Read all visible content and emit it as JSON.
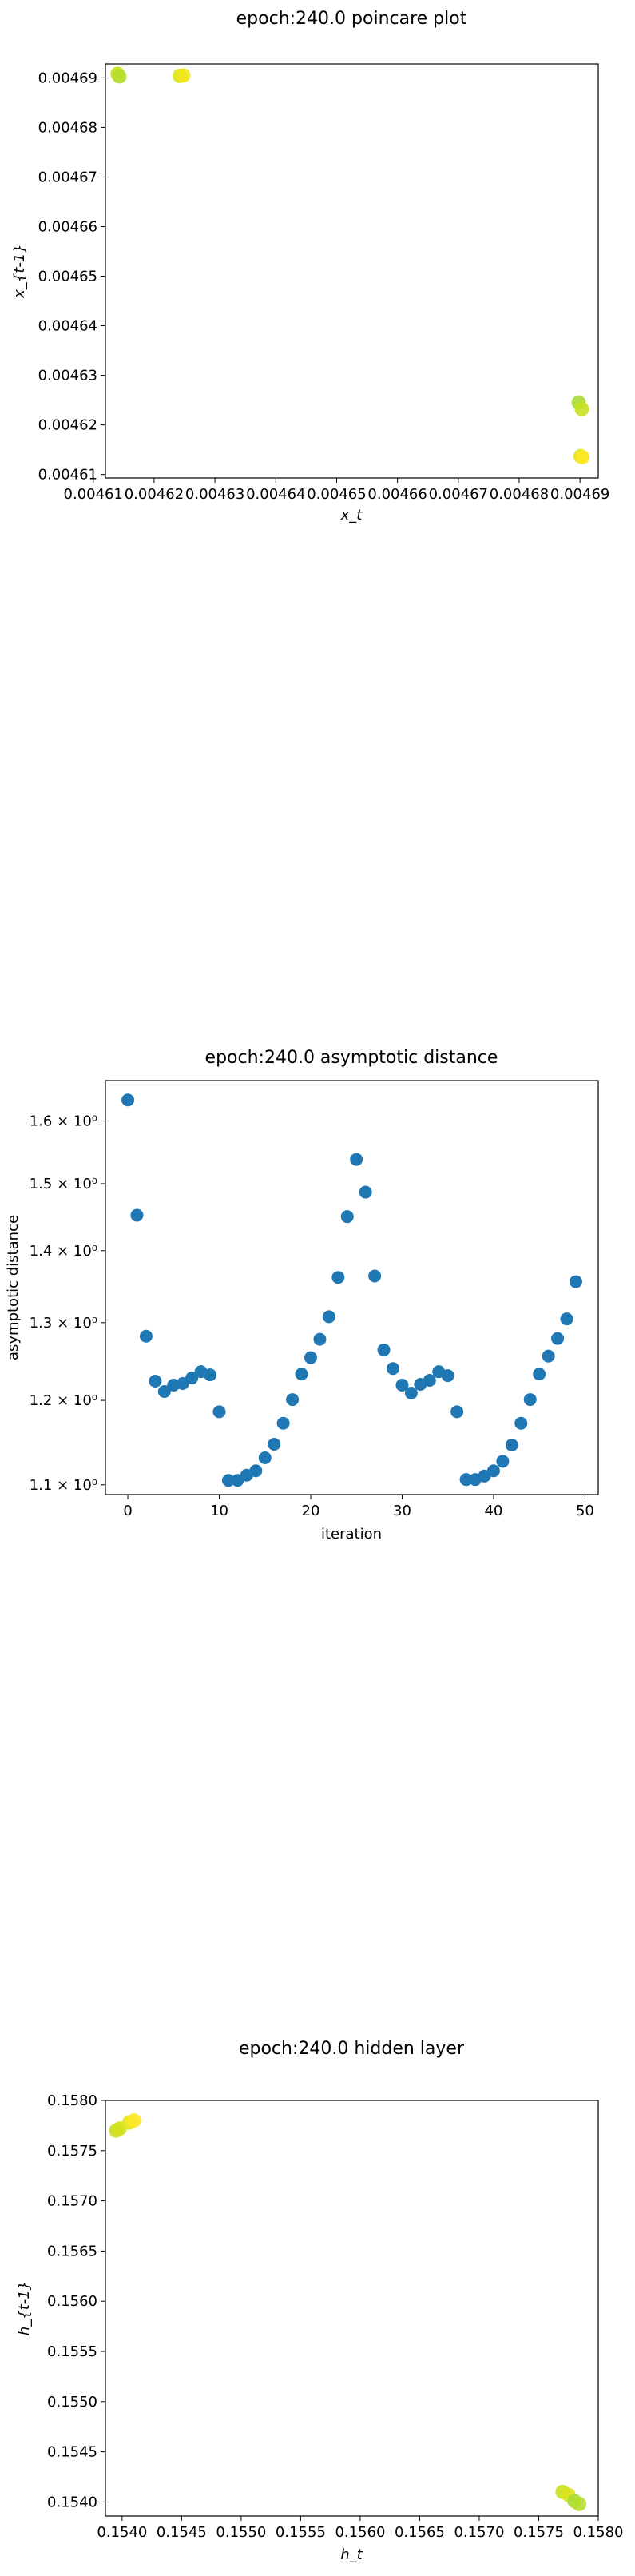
{
  "chart_data": [
    {
      "type": "scatter",
      "title": "epoch:240.0 poincare plot",
      "xlabel": "x_t",
      "ylabel": "x_{t-1}",
      "xlim": [
        0.004612,
        0.004693
      ],
      "ylim": [
        0.0046093,
        0.0046928
      ],
      "xticks": [
        0.00461,
        0.00462,
        0.00463,
        0.00464,
        0.00465,
        0.00466,
        0.00467,
        0.00468,
        0.00469
      ],
      "xtick_labels": [
        "0.00461",
        "0.00462",
        "0.00463",
        "0.00464",
        "0.00465",
        "0.00466",
        "0.00467",
        "0.00468",
        "0.00469"
      ],
      "yticks": [
        0.00461,
        0.00462,
        0.00463,
        0.00464,
        0.00465,
        0.00466,
        0.00467,
        0.00468,
        0.00469
      ],
      "ytick_labels": [
        "0.00461",
        "0.00462",
        "0.00463",
        "0.00464",
        "0.00465",
        "0.00466",
        "0.00467",
        "0.00468",
        "0.00469"
      ],
      "points": [
        {
          "x": 0.004614,
          "y": 0.0046908,
          "color": "#c5df20"
        },
        {
          "x": 0.0046143,
          "y": 0.0046903,
          "color": "#b5de2b"
        },
        {
          "x": 0.0046242,
          "y": 0.0046904,
          "color": "#d9e51a"
        },
        {
          "x": 0.0046248,
          "y": 0.0046905,
          "color": "#f0e71d"
        },
        {
          "x": 0.0046898,
          "y": 0.0046245,
          "color": "#a8db34"
        },
        {
          "x": 0.0046903,
          "y": 0.0046232,
          "color": "#c8e020"
        },
        {
          "x": 0.0046901,
          "y": 0.0046137,
          "color": "#dde318"
        },
        {
          "x": 0.0046904,
          "y": 0.0046135,
          "color": "#fde725"
        }
      ]
    },
    {
      "type": "scatter",
      "title": "epoch:240.0 asymptotic distance",
      "xlabel": "iteration",
      "ylabel": "asymptotic distance",
      "yscale": "log",
      "xlim": [
        -2.45,
        51.45
      ],
      "ylim": [
        1.089,
        1.668
      ],
      "xticks": [
        0,
        10,
        20,
        30,
        40,
        50
      ],
      "xtick_labels": [
        "0",
        "10",
        "20",
        "30",
        "40",
        "50"
      ],
      "yticks": [
        1.1,
        1.2,
        1.3,
        1.4,
        1.5,
        1.6
      ],
      "ytick_labels": [
        "1.1 × 10⁰",
        "1.2 × 10⁰",
        "1.3 × 10⁰",
        "1.4 × 10⁰",
        "1.5 × 10⁰",
        "1.6 × 10⁰"
      ],
      "color": "#1f77b4",
      "x": [
        0,
        1,
        2,
        3,
        4,
        5,
        6,
        7,
        8,
        9,
        10,
        11,
        12,
        13,
        14,
        15,
        16,
        17,
        18,
        19,
        20,
        21,
        22,
        23,
        24,
        25,
        26,
        27,
        28,
        29,
        30,
        31,
        32,
        33,
        34,
        35,
        36,
        37,
        38,
        39,
        40,
        41,
        42,
        43,
        44,
        45,
        46,
        47,
        48,
        49
      ],
      "y": [
        1.635,
        1.452,
        1.282,
        1.224,
        1.211,
        1.219,
        1.221,
        1.228,
        1.236,
        1.232,
        1.186,
        1.105,
        1.105,
        1.111,
        1.116,
        1.131,
        1.147,
        1.172,
        1.201,
        1.233,
        1.254,
        1.278,
        1.308,
        1.362,
        1.45,
        1.538,
        1.487,
        1.364,
        1.264,
        1.24,
        1.219,
        1.209,
        1.22,
        1.225,
        1.236,
        1.231,
        1.186,
        1.106,
        1.106,
        1.11,
        1.116,
        1.127,
        1.146,
        1.172,
        1.201,
        1.233,
        1.256,
        1.279,
        1.305,
        1.356
      ]
    },
    {
      "type": "scatter",
      "title": "epoch:240.0 hidden layer",
      "xlabel": "h_t",
      "ylabel": "h_{t-1}",
      "xlim": [
        0.15386,
        0.158
      ],
      "ylim": [
        0.15386,
        0.158
      ],
      "xticks": [
        0.154,
        0.1545,
        0.155,
        0.1555,
        0.156,
        0.1565,
        0.157,
        0.1575,
        0.158
      ],
      "xtick_labels": [
        "0.1540",
        "0.1545",
        "0.1550",
        "0.1555",
        "0.1560",
        "0.1565",
        "0.1570",
        "0.1575",
        "0.1580"
      ],
      "yticks": [
        0.154,
        0.1545,
        0.155,
        0.1555,
        0.156,
        0.1565,
        0.157,
        0.1575,
        0.158
      ],
      "ytick_labels": [
        "0.1540",
        "0.1545",
        "0.1550",
        "0.1555",
        "0.1560",
        "0.1565",
        "0.1570",
        "0.1575",
        "0.1580"
      ],
      "points": [
        {
          "x": 0.15395,
          "y": 0.1577,
          "color": "#c5df20"
        },
        {
          "x": 0.15398,
          "y": 0.15772,
          "color": "#d4e21a"
        },
        {
          "x": 0.15406,
          "y": 0.15778,
          "color": "#e8e419"
        },
        {
          "x": 0.1541,
          "y": 0.1578,
          "color": "#fde725"
        },
        {
          "x": 0.1577,
          "y": 0.1541,
          "color": "#c8e020"
        },
        {
          "x": 0.15775,
          "y": 0.15407,
          "color": "#dde318"
        },
        {
          "x": 0.1578,
          "y": 0.15401,
          "color": "#a8db34"
        },
        {
          "x": 0.15784,
          "y": 0.15398,
          "color": "#b5de2b"
        }
      ]
    }
  ]
}
